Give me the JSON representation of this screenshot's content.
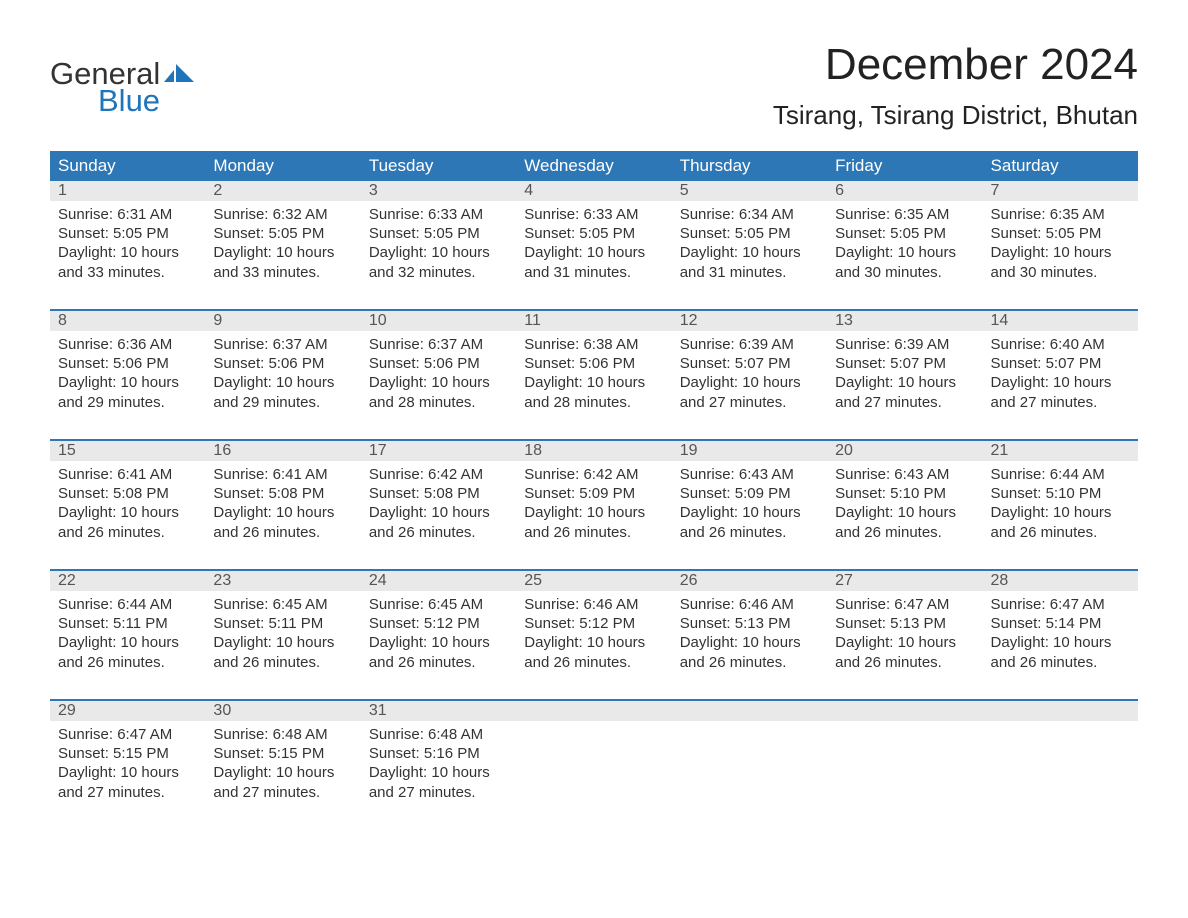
{
  "logo": {
    "text1": "General",
    "text2": "Blue",
    "flag_color": "#2074bb"
  },
  "title": "December 2024",
  "location": "Tsirang, Tsirang District, Bhutan",
  "colors": {
    "header_bg": "#2d77b7",
    "header_text": "#ffffff",
    "daynum_bg": "#e9e9e9",
    "border": "#2d77b7",
    "text": "#333333",
    "background": "#ffffff"
  },
  "typography": {
    "title_fontsize": 44,
    "location_fontsize": 26,
    "dayhead_fontsize": 17,
    "body_fontsize": 15
  },
  "day_names": [
    "Sunday",
    "Monday",
    "Tuesday",
    "Wednesday",
    "Thursday",
    "Friday",
    "Saturday"
  ],
  "weeks": [
    [
      {
        "n": "1",
        "sunrise": "Sunrise: 6:31 AM",
        "sunset": "Sunset: 5:05 PM",
        "day1": "Daylight: 10 hours",
        "day2": "and 33 minutes."
      },
      {
        "n": "2",
        "sunrise": "Sunrise: 6:32 AM",
        "sunset": "Sunset: 5:05 PM",
        "day1": "Daylight: 10 hours",
        "day2": "and 33 minutes."
      },
      {
        "n": "3",
        "sunrise": "Sunrise: 6:33 AM",
        "sunset": "Sunset: 5:05 PM",
        "day1": "Daylight: 10 hours",
        "day2": "and 32 minutes."
      },
      {
        "n": "4",
        "sunrise": "Sunrise: 6:33 AM",
        "sunset": "Sunset: 5:05 PM",
        "day1": "Daylight: 10 hours",
        "day2": "and 31 minutes."
      },
      {
        "n": "5",
        "sunrise": "Sunrise: 6:34 AM",
        "sunset": "Sunset: 5:05 PM",
        "day1": "Daylight: 10 hours",
        "day2": "and 31 minutes."
      },
      {
        "n": "6",
        "sunrise": "Sunrise: 6:35 AM",
        "sunset": "Sunset: 5:05 PM",
        "day1": "Daylight: 10 hours",
        "day2": "and 30 minutes."
      },
      {
        "n": "7",
        "sunrise": "Sunrise: 6:35 AM",
        "sunset": "Sunset: 5:05 PM",
        "day1": "Daylight: 10 hours",
        "day2": "and 30 minutes."
      }
    ],
    [
      {
        "n": "8",
        "sunrise": "Sunrise: 6:36 AM",
        "sunset": "Sunset: 5:06 PM",
        "day1": "Daylight: 10 hours",
        "day2": "and 29 minutes."
      },
      {
        "n": "9",
        "sunrise": "Sunrise: 6:37 AM",
        "sunset": "Sunset: 5:06 PM",
        "day1": "Daylight: 10 hours",
        "day2": "and 29 minutes."
      },
      {
        "n": "10",
        "sunrise": "Sunrise: 6:37 AM",
        "sunset": "Sunset: 5:06 PM",
        "day1": "Daylight: 10 hours",
        "day2": "and 28 minutes."
      },
      {
        "n": "11",
        "sunrise": "Sunrise: 6:38 AM",
        "sunset": "Sunset: 5:06 PM",
        "day1": "Daylight: 10 hours",
        "day2": "and 28 minutes."
      },
      {
        "n": "12",
        "sunrise": "Sunrise: 6:39 AM",
        "sunset": "Sunset: 5:07 PM",
        "day1": "Daylight: 10 hours",
        "day2": "and 27 minutes."
      },
      {
        "n": "13",
        "sunrise": "Sunrise: 6:39 AM",
        "sunset": "Sunset: 5:07 PM",
        "day1": "Daylight: 10 hours",
        "day2": "and 27 minutes."
      },
      {
        "n": "14",
        "sunrise": "Sunrise: 6:40 AM",
        "sunset": "Sunset: 5:07 PM",
        "day1": "Daylight: 10 hours",
        "day2": "and 27 minutes."
      }
    ],
    [
      {
        "n": "15",
        "sunrise": "Sunrise: 6:41 AM",
        "sunset": "Sunset: 5:08 PM",
        "day1": "Daylight: 10 hours",
        "day2": "and 26 minutes."
      },
      {
        "n": "16",
        "sunrise": "Sunrise: 6:41 AM",
        "sunset": "Sunset: 5:08 PM",
        "day1": "Daylight: 10 hours",
        "day2": "and 26 minutes."
      },
      {
        "n": "17",
        "sunrise": "Sunrise: 6:42 AM",
        "sunset": "Sunset: 5:08 PM",
        "day1": "Daylight: 10 hours",
        "day2": "and 26 minutes."
      },
      {
        "n": "18",
        "sunrise": "Sunrise: 6:42 AM",
        "sunset": "Sunset: 5:09 PM",
        "day1": "Daylight: 10 hours",
        "day2": "and 26 minutes."
      },
      {
        "n": "19",
        "sunrise": "Sunrise: 6:43 AM",
        "sunset": "Sunset: 5:09 PM",
        "day1": "Daylight: 10 hours",
        "day2": "and 26 minutes."
      },
      {
        "n": "20",
        "sunrise": "Sunrise: 6:43 AM",
        "sunset": "Sunset: 5:10 PM",
        "day1": "Daylight: 10 hours",
        "day2": "and 26 minutes."
      },
      {
        "n": "21",
        "sunrise": "Sunrise: 6:44 AM",
        "sunset": "Sunset: 5:10 PM",
        "day1": "Daylight: 10 hours",
        "day2": "and 26 minutes."
      }
    ],
    [
      {
        "n": "22",
        "sunrise": "Sunrise: 6:44 AM",
        "sunset": "Sunset: 5:11 PM",
        "day1": "Daylight: 10 hours",
        "day2": "and 26 minutes."
      },
      {
        "n": "23",
        "sunrise": "Sunrise: 6:45 AM",
        "sunset": "Sunset: 5:11 PM",
        "day1": "Daylight: 10 hours",
        "day2": "and 26 minutes."
      },
      {
        "n": "24",
        "sunrise": "Sunrise: 6:45 AM",
        "sunset": "Sunset: 5:12 PM",
        "day1": "Daylight: 10 hours",
        "day2": "and 26 minutes."
      },
      {
        "n": "25",
        "sunrise": "Sunrise: 6:46 AM",
        "sunset": "Sunset: 5:12 PM",
        "day1": "Daylight: 10 hours",
        "day2": "and 26 minutes."
      },
      {
        "n": "26",
        "sunrise": "Sunrise: 6:46 AM",
        "sunset": "Sunset: 5:13 PM",
        "day1": "Daylight: 10 hours",
        "day2": "and 26 minutes."
      },
      {
        "n": "27",
        "sunrise": "Sunrise: 6:47 AM",
        "sunset": "Sunset: 5:13 PM",
        "day1": "Daylight: 10 hours",
        "day2": "and 26 minutes."
      },
      {
        "n": "28",
        "sunrise": "Sunrise: 6:47 AM",
        "sunset": "Sunset: 5:14 PM",
        "day1": "Daylight: 10 hours",
        "day2": "and 26 minutes."
      }
    ],
    [
      {
        "n": "29",
        "sunrise": "Sunrise: 6:47 AM",
        "sunset": "Sunset: 5:15 PM",
        "day1": "Daylight: 10 hours",
        "day2": "and 27 minutes."
      },
      {
        "n": "30",
        "sunrise": "Sunrise: 6:48 AM",
        "sunset": "Sunset: 5:15 PM",
        "day1": "Daylight: 10 hours",
        "day2": "and 27 minutes."
      },
      {
        "n": "31",
        "sunrise": "Sunrise: 6:48 AM",
        "sunset": "Sunset: 5:16 PM",
        "day1": "Daylight: 10 hours",
        "day2": "and 27 minutes."
      },
      null,
      null,
      null,
      null
    ]
  ]
}
